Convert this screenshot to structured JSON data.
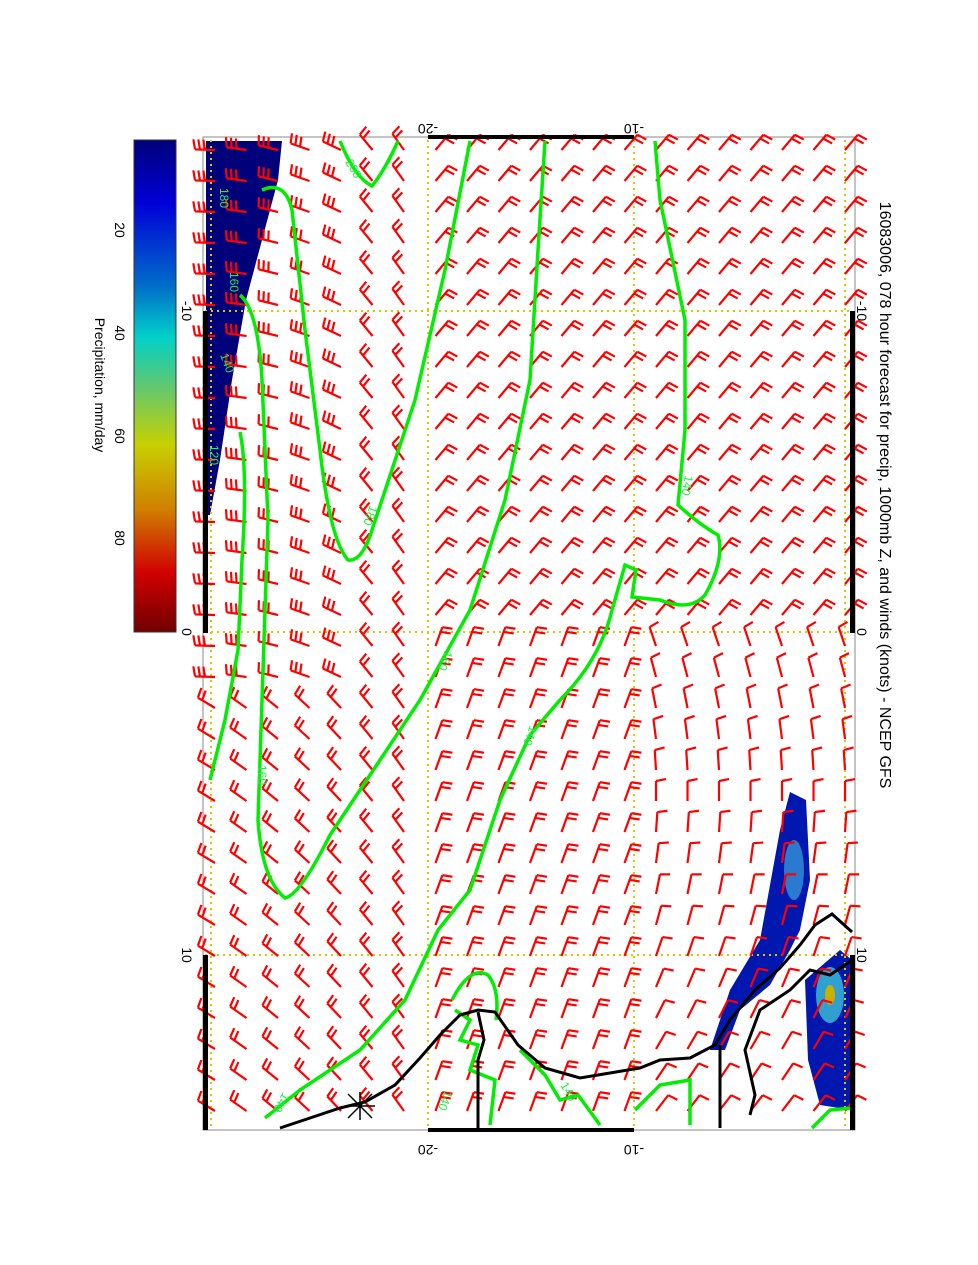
{
  "chart_data": {
    "type": "contour-map",
    "title": "16083006, 078 hour forecast for precip, 1000mb Z, and winds (knots) - NCEP GFS",
    "orientation": "rotated 90 degrees clockwise",
    "x_axis_ticks": [
      "-10",
      "0",
      "10"
    ],
    "y_axis_ticks": [
      "-20",
      "-10"
    ],
    "colorbar": {
      "label": "Precipitation, mm/day",
      "ticks": [
        "20",
        "40",
        "60",
        "80"
      ],
      "range": [
        0,
        95
      ],
      "colors": [
        "#00007a",
        "#0000d8",
        "#0070c8",
        "#00d0c8",
        "#60c870",
        "#c8d000",
        "#d08000",
        "#d00000",
        "#700000"
      ]
    },
    "contour_labels": [
      "200",
      "180",
      "160",
      "140",
      "120",
      "180",
      "160",
      "140",
      "140",
      "160",
      "140",
      "140",
      "140"
    ],
    "colors": {
      "contour": "#00ee00",
      "barb": "#ff0000",
      "coast": "#000000",
      "grid": "#d8c800"
    }
  }
}
